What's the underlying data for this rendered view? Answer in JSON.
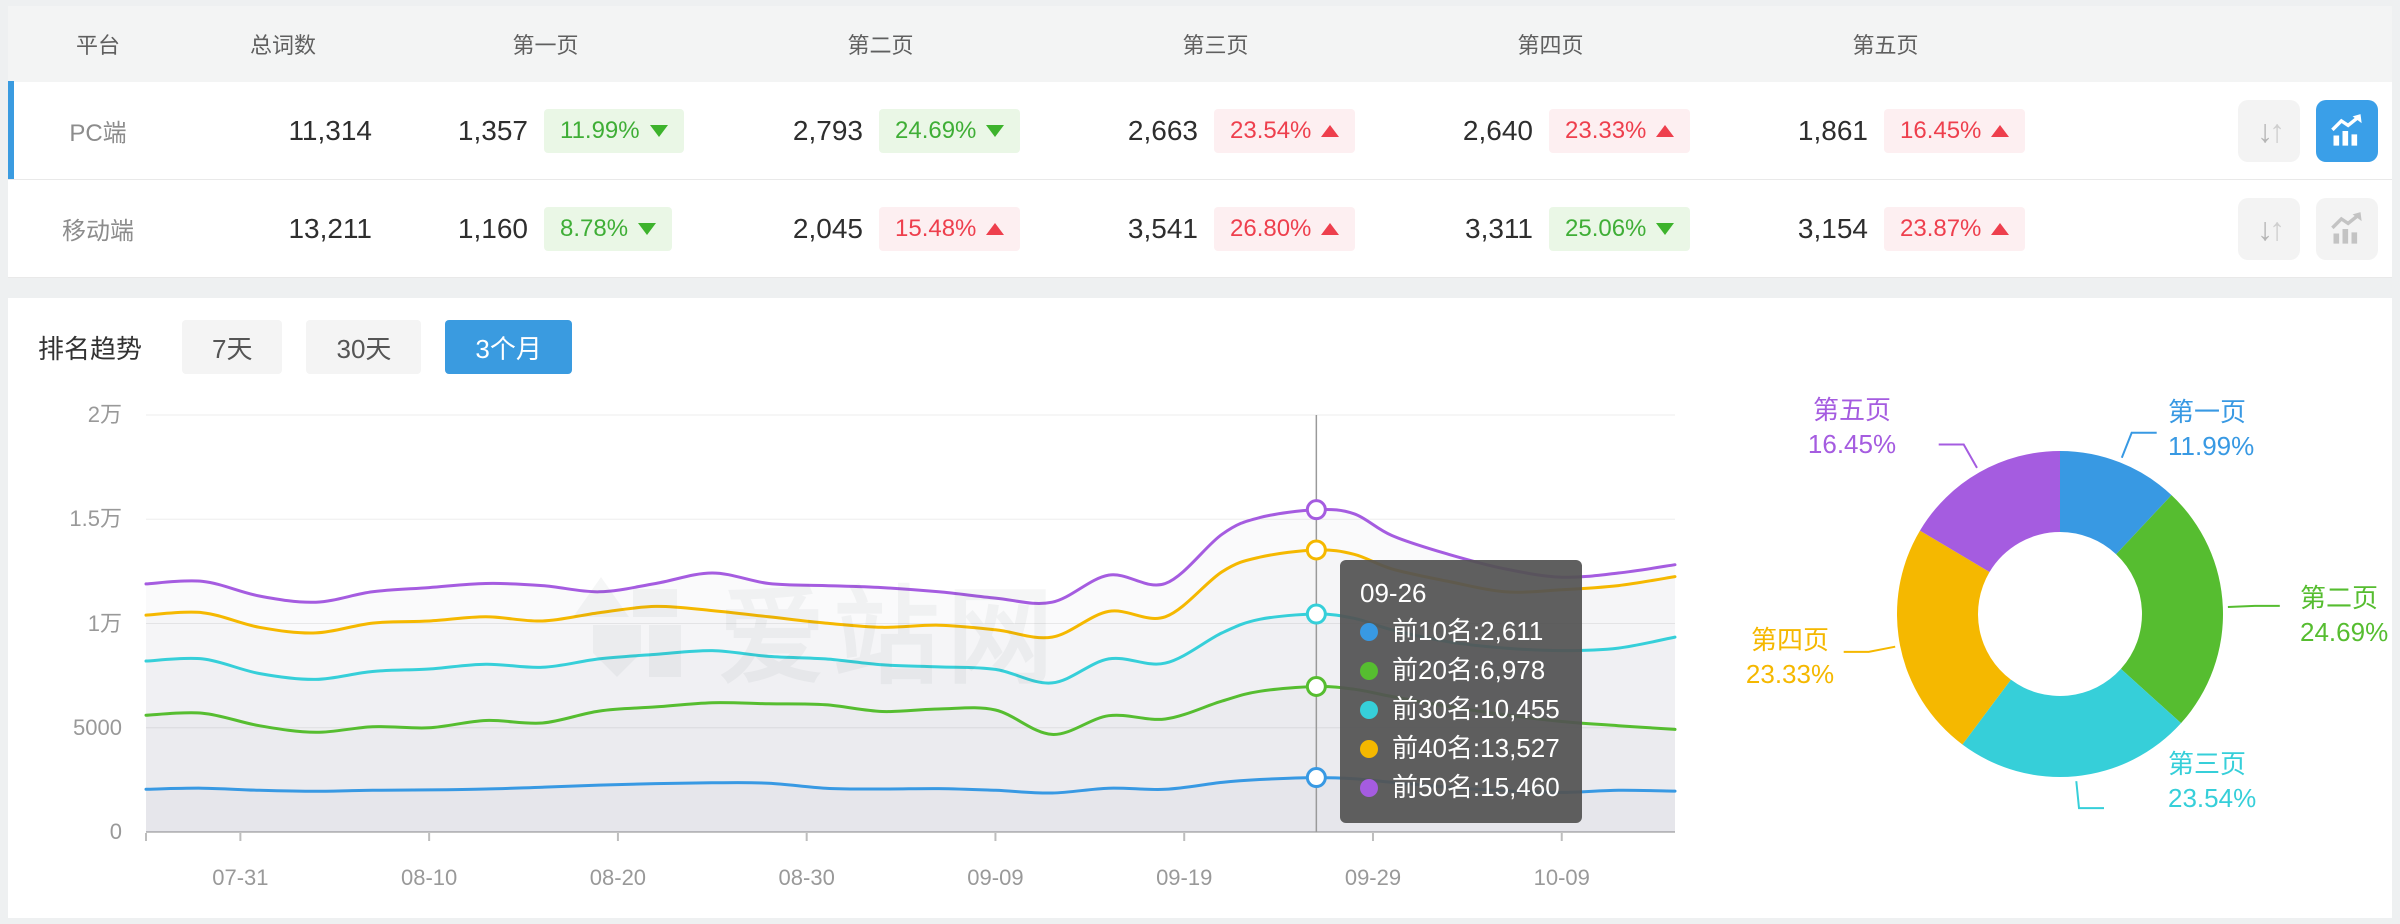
{
  "colors": {
    "accent": "#3a9be0",
    "good_green": "#3fae36",
    "bad_red": "#ee3f4d",
    "axis_text": "#999999",
    "grid": "#ededed"
  },
  "table": {
    "headers": [
      "平台",
      "总词数",
      "第一页",
      "第二页",
      "第三页",
      "第四页",
      "第五页"
    ],
    "rows": [
      {
        "platform": "PC端",
        "total": "11,314",
        "selected": true,
        "pages": [
          {
            "value": "1,357",
            "pct": "11.99%",
            "dir": "down"
          },
          {
            "value": "2,793",
            "pct": "24.69%",
            "dir": "down"
          },
          {
            "value": "2,663",
            "pct": "23.54%",
            "dir": "up"
          },
          {
            "value": "2,640",
            "pct": "23.33%",
            "dir": "up"
          },
          {
            "value": "1,861",
            "pct": "16.45%",
            "dir": "up"
          }
        ],
        "sort_icon_active": false,
        "chart_icon_active": true
      },
      {
        "platform": "移动端",
        "total": "13,211",
        "selected": false,
        "pages": [
          {
            "value": "1,160",
            "pct": "8.78%",
            "dir": "down"
          },
          {
            "value": "2,045",
            "pct": "15.48%",
            "dir": "up"
          },
          {
            "value": "3,541",
            "pct": "26.80%",
            "dir": "up"
          },
          {
            "value": "3,311",
            "pct": "25.06%",
            "dir": "down"
          },
          {
            "value": "3,154",
            "pct": "23.87%",
            "dir": "up"
          }
        ],
        "sort_icon_active": false,
        "chart_icon_active": false
      }
    ]
  },
  "trend": {
    "title": "排名趋势",
    "tabs": [
      {
        "label": "7天",
        "active": false
      },
      {
        "label": "30天",
        "active": false
      },
      {
        "label": "3个月",
        "active": true
      }
    ]
  },
  "watermark": {
    "text": "爱站网"
  },
  "chart_data": [
    {
      "type": "line",
      "title": "排名趋势 3个月",
      "x_ticks": [
        "07-31",
        "08-10",
        "08-20",
        "08-30",
        "09-09",
        "09-19",
        "09-29",
        "10-09"
      ],
      "x_tick_days": [
        5,
        15,
        25,
        35,
        45,
        55,
        65,
        75
      ],
      "x_range_days": [
        0,
        81
      ],
      "y_tick_labels": [
        "0",
        "5000",
        "1万",
        "1.5万",
        "2万"
      ],
      "y_tick_values": [
        0,
        5000,
        10000,
        15000,
        20000
      ],
      "ylim": [
        0,
        20000
      ],
      "grid": true,
      "sample_days": [
        0,
        3,
        6,
        9,
        12,
        15,
        18,
        21,
        24,
        27,
        30,
        33,
        36,
        39,
        42,
        45,
        48,
        51,
        54,
        57,
        59,
        62,
        64,
        66,
        69,
        72,
        75,
        78,
        81
      ],
      "crosshair_day": 62,
      "series": [
        {
          "name": "前10名",
          "color": "#3899e3",
          "values": [
            2050,
            2100,
            2000,
            1950,
            2000,
            2020,
            2060,
            2150,
            2250,
            2320,
            2360,
            2340,
            2100,
            2060,
            2080,
            2000,
            1870,
            2100,
            2050,
            2380,
            2520,
            2611,
            2550,
            2380,
            2150,
            1980,
            1900,
            2000,
            1960
          ]
        },
        {
          "name": "前20名",
          "color": "#56bd30",
          "values": [
            5600,
            5700,
            5100,
            4780,
            5050,
            5000,
            5350,
            5230,
            5800,
            6000,
            6200,
            6150,
            6100,
            5780,
            5900,
            5850,
            4680,
            5580,
            5420,
            6280,
            6750,
            6978,
            6850,
            6500,
            6020,
            5620,
            5300,
            5100,
            4920
          ]
        },
        {
          "name": "前30名",
          "color": "#36cfd9",
          "values": [
            8200,
            8300,
            7600,
            7320,
            7700,
            7820,
            8050,
            7900,
            8300,
            8520,
            8700,
            8420,
            8300,
            8020,
            7920,
            7800,
            7150,
            8300,
            8100,
            9550,
            10200,
            10455,
            10250,
            9700,
            9120,
            8820,
            8700,
            8820,
            9350
          ]
        },
        {
          "name": "前40名",
          "color": "#f5b800",
          "values": [
            10400,
            10520,
            9820,
            9550,
            10020,
            10120,
            10320,
            10120,
            10520,
            10820,
            10620,
            10320,
            10020,
            9820,
            9920,
            9700,
            9350,
            10580,
            10320,
            12480,
            13180,
            13527,
            13320,
            12620,
            12020,
            11520,
            11620,
            11820,
            12250
          ]
        },
        {
          "name": "前50名",
          "color": "#a55ce0",
          "values": [
            11900,
            12020,
            11320,
            11020,
            11520,
            11720,
            11920,
            11820,
            11520,
            11920,
            12420,
            11920,
            11820,
            11720,
            11520,
            11220,
            11020,
            12320,
            11920,
            14280,
            15080,
            15460,
            15260,
            14220,
            13320,
            12620,
            12220,
            12420,
            12820
          ]
        }
      ],
      "tooltip": {
        "date": "09-26",
        "rows": [
          {
            "label": "前10名: ",
            "value": "2,611",
            "color": "#3899e3"
          },
          {
            "label": "前20名: ",
            "value": "6,978",
            "color": "#56bd30"
          },
          {
            "label": "前30名: ",
            "value": "10,455",
            "color": "#36cfd9"
          },
          {
            "label": "前40名: ",
            "value": "13,527",
            "color": "#f5b800"
          },
          {
            "label": "前50名: ",
            "value": "15,460",
            "color": "#a55ce0"
          }
        ]
      }
    },
    {
      "type": "pie",
      "subtype": "donut",
      "slices": [
        {
          "label": "第一页",
          "pct": 11.99,
          "pct_label": "11.99%",
          "color": "#3899e3"
        },
        {
          "label": "第二页",
          "pct": 24.69,
          "pct_label": "24.69%",
          "color": "#56bd30"
        },
        {
          "label": "第三页",
          "pct": 23.54,
          "pct_label": "23.54%",
          "color": "#36cfd9"
        },
        {
          "label": "第四页",
          "pct": 23.33,
          "pct_label": "23.33%",
          "color": "#f5b800"
        },
        {
          "label": "第五页",
          "pct": 16.45,
          "pct_label": "16.45%",
          "color": "#a55ce0"
        }
      ]
    }
  ]
}
